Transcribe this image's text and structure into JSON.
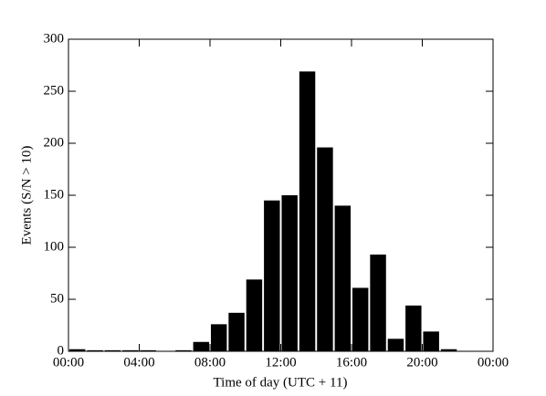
{
  "chart_data": {
    "type": "histogram",
    "xlabel": "Time of day  (UTC + 11)",
    "ylabel": "Events  (S/N  > 10)",
    "bins": [
      0,
      1,
      2,
      3,
      4,
      5,
      6,
      7,
      8,
      9,
      10,
      11,
      12,
      13,
      14,
      15,
      16,
      17,
      18,
      19,
      20,
      21,
      22,
      23,
      24
    ],
    "values": [
      2,
      1,
      1,
      1,
      1,
      0,
      1,
      9,
      26,
      37,
      69,
      145,
      150,
      269,
      196,
      140,
      61,
      93,
      12,
      44,
      19,
      2,
      0,
      0
    ],
    "color": "#000000",
    "xlim": [
      0,
      24
    ],
    "xticks": [
      {
        "value": 0,
        "label": "00:00"
      },
      {
        "value": 4,
        "label": "04:00"
      },
      {
        "value": 8,
        "label": "08:00"
      },
      {
        "value": 12,
        "label": "12:00"
      },
      {
        "value": 16,
        "label": "16:00"
      },
      {
        "value": 20,
        "label": "20:00"
      },
      {
        "value": 24,
        "label": "00:00"
      }
    ],
    "ylim": [
      0,
      300
    ],
    "yticks": [
      0,
      50,
      100,
      150,
      200,
      250,
      300
    ]
  }
}
